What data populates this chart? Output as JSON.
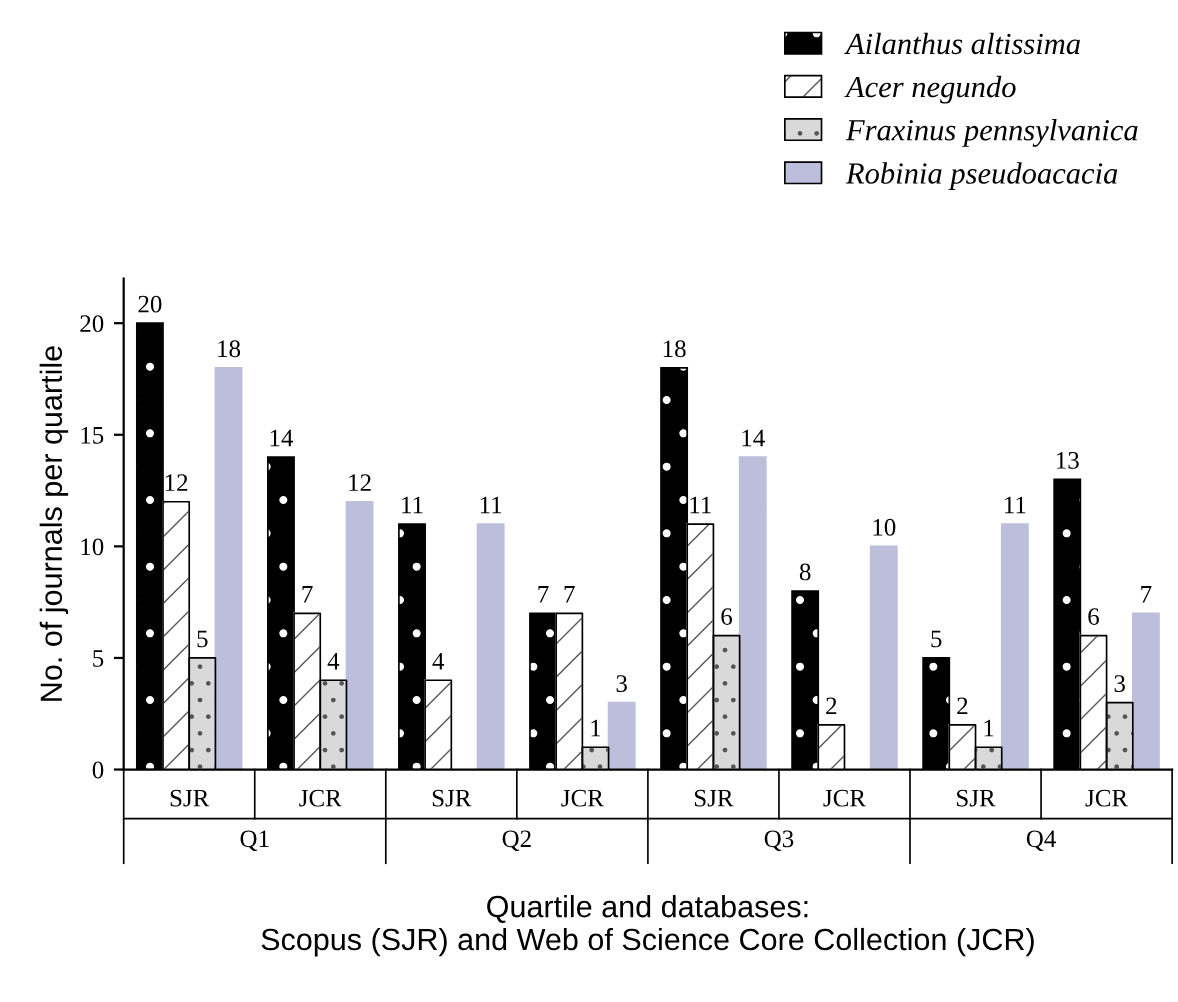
{
  "chart_data": {
    "type": "bar",
    "xlabel": "Quartile and databases:\nScopus (SJR) and Web of Science Core Collection (JCR)",
    "ylabel": "No. of journals per quartile",
    "categories": [
      "SJR",
      "JCR",
      "SJR",
      "JCR",
      "SJR",
      "JCR",
      "SJR",
      "JCR"
    ],
    "series": [
      {
        "name": "Ailanthus altissima",
        "color": "#000000",
        "values": [
          20,
          14,
          11,
          7,
          18,
          8,
          5,
          13
        ]
      },
      {
        "name": "Acer negundo",
        "color": "#ffffff",
        "values": [
          12,
          7,
          4,
          7,
          11,
          2,
          2,
          6
        ]
      },
      {
        "name": "Fraxinus pennsylvanica",
        "color": "#d9d9d9",
        "values": [
          5,
          4,
          null,
          1,
          6,
          null,
          1,
          3
        ]
      },
      {
        "name": "Robinia pseudoacacia",
        "color": "#bcbedc",
        "values": [
          18,
          12,
          11,
          3,
          14,
          10,
          11,
          7
        ]
      }
    ],
    "annotations": [
      "Q1",
      "Q2",
      "Q3",
      "Q4"
    ],
    "ylim": [
      0,
      22
    ],
    "yticks": [
      0,
      5,
      10,
      15,
      20
    ],
    "data_labels": true,
    "legend": "top right",
    "grid": false
  }
}
